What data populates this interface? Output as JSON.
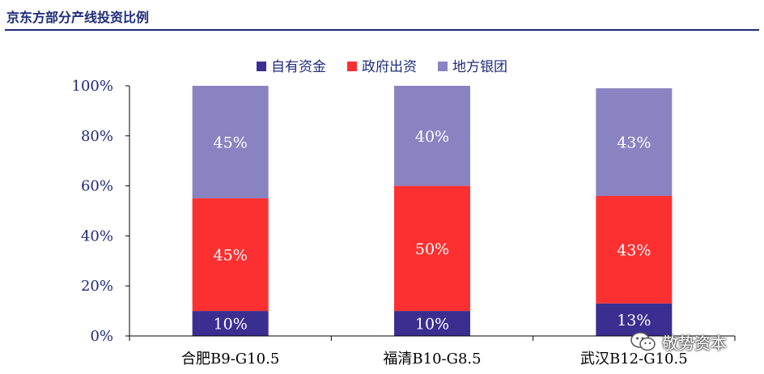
{
  "header": {
    "title": "京东方部分产线投资比例"
  },
  "colors": {
    "title": "#1f2b7a",
    "axis_text": "#1f2b7a",
    "series": [
      "#3b2e91",
      "#fd3031",
      "#8a83c1"
    ]
  },
  "chart_data": {
    "type": "bar",
    "stacked": true,
    "title": "",
    "xlabel": "",
    "ylabel": "",
    "categories": [
      "合肥B9-G10.5",
      "福清B10-G8.5",
      "武汉B12-G10.5"
    ],
    "series": [
      {
        "name": "自有资金",
        "values": [
          10,
          10,
          13
        ],
        "labels": [
          "10%",
          "10%",
          "13%"
        ],
        "color": "#3b2e91"
      },
      {
        "name": "政府出资",
        "values": [
          45,
          50,
          43
        ],
        "labels": [
          "45%",
          "50%",
          "43%"
        ],
        "color": "#fd3031"
      },
      {
        "name": "地方银团",
        "values": [
          45,
          40,
          43
        ],
        "labels": [
          "45%",
          "40%",
          "43%"
        ],
        "color": "#8a83c1"
      }
    ],
    "ylim": [
      0,
      100
    ],
    "yticks": [
      "0%",
      "20%",
      "40%",
      "60%",
      "80%",
      "100%"
    ],
    "grid": false,
    "legend": "top-center"
  },
  "watermark": {
    "text": "敬势资本",
    "icon": "wechat-icon"
  }
}
